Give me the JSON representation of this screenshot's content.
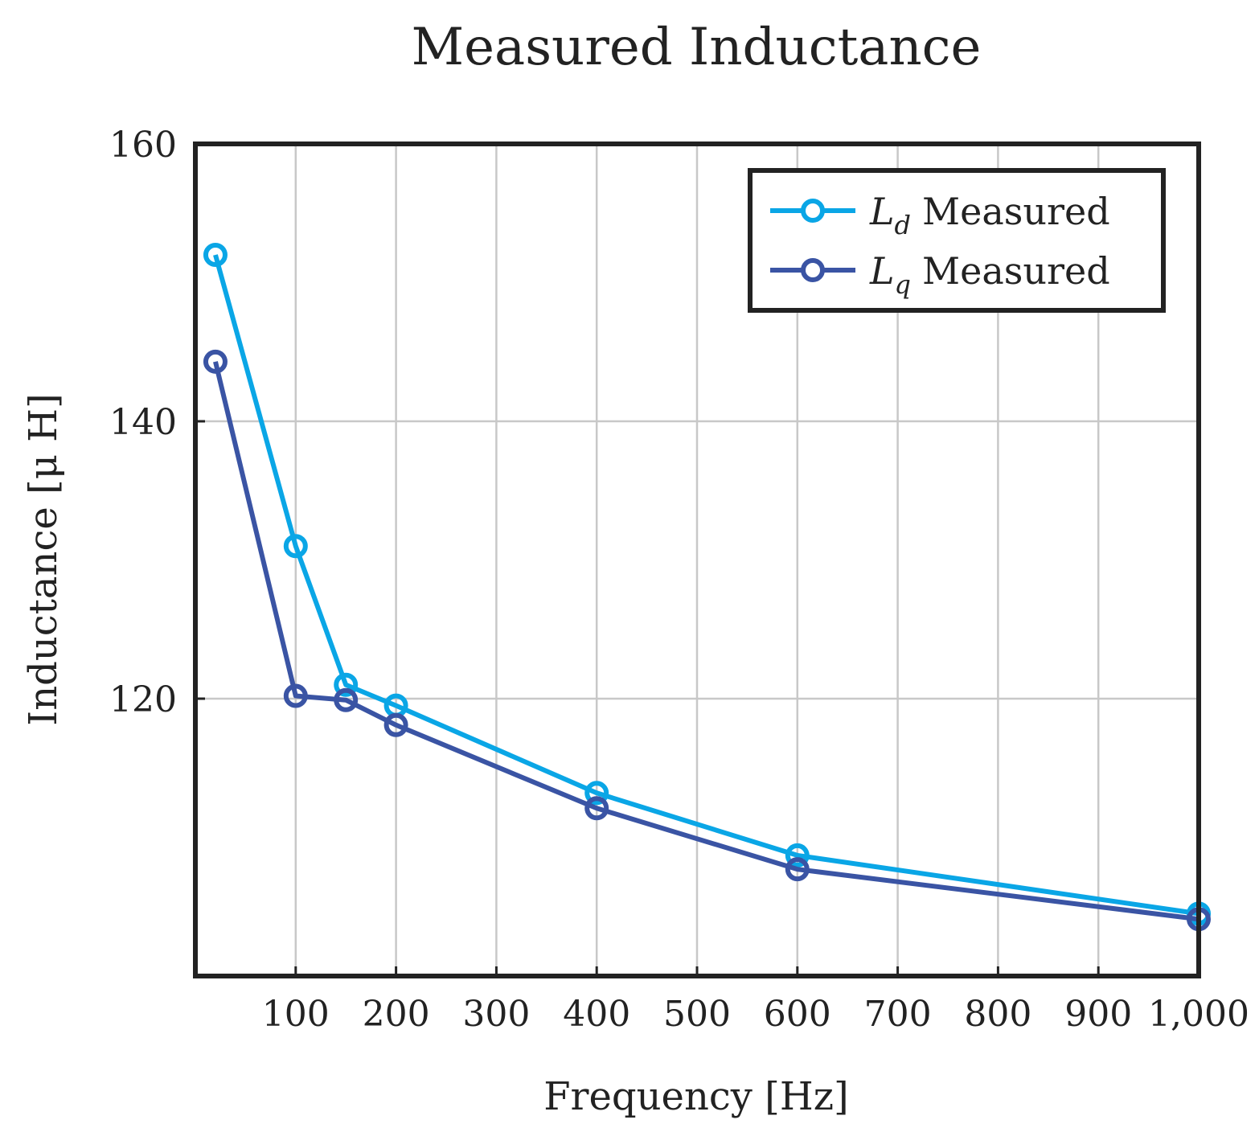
{
  "chart_data": {
    "type": "line",
    "title": "Measured Inductance",
    "xlabel": "Frequency [Hz]",
    "ylabel": "Inductance [μ H]",
    "xlim": [
      0,
      1000
    ],
    "ylim": [
      100,
      160
    ],
    "xticks": [
      100,
      200,
      300,
      400,
      500,
      600,
      700,
      800,
      900,
      1000
    ],
    "xtick_labels": [
      "100",
      "200",
      "300",
      "400",
      "500",
      "600",
      "700",
      "800",
      "900",
      "1,000"
    ],
    "yticks": [
      120,
      140,
      160
    ],
    "ytick_labels": [
      "120",
      "140",
      "160"
    ],
    "grid": true,
    "legend_position": "top-right",
    "series": [
      {
        "name": "L_d Measured",
        "legend_main": "L",
        "legend_sub": "d",
        "legend_rest": "Measured",
        "color": "#0aa6e6",
        "x": [
          20,
          100,
          150,
          200,
          400,
          600,
          1000
        ],
        "y": [
          152.0,
          131.0,
          121.0,
          119.5,
          113.2,
          108.7,
          104.5
        ]
      },
      {
        "name": "L_q Measured",
        "legend_main": "L",
        "legend_sub": "q",
        "legend_rest": "Measured",
        "color": "#3a54a4",
        "x": [
          20,
          100,
          150,
          200,
          400,
          600,
          1000
        ],
        "y": [
          144.3,
          120.2,
          119.9,
          118.1,
          112.1,
          107.7,
          104.1
        ]
      }
    ]
  }
}
